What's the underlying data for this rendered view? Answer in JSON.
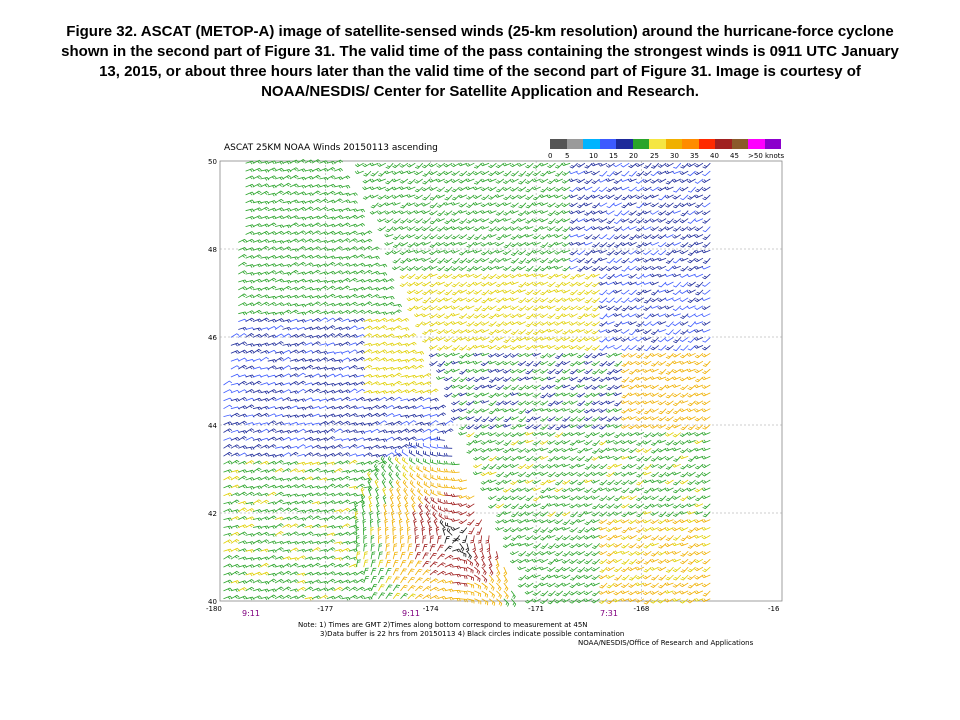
{
  "caption": "Figure 32.  ASCAT (METOP-A) image of satellite-sensed winds (25-km resolution) around the hurricane-force  cyclone shown in the second part of Figure 31.  The valid time of the pass containing  the strongest winds is 0911 UTC January 13, 2015, or about three hours later than the valid time of the second part of Figure 31.  Image is courtesy of NOAA/NESDIS/ Center for Satellite Application  and Research.",
  "figure": {
    "title": "ASCAT 25KM NOAA Winds 20150113 ascending",
    "legend": {
      "colors": [
        "#555555",
        "#9a9a9a",
        "#00b4ff",
        "#3c5aff",
        "#1d2a9a",
        "#2aa42a",
        "#f5e642",
        "#f0b000",
        "#ff8c00",
        "#ff2a00",
        "#a02020",
        "#8b5a2b",
        "#ff00ff",
        "#8b00cc"
      ],
      "labels": [
        "0",
        "5",
        "10",
        "15",
        "20",
        "25",
        "30",
        "35",
        "40",
        "45",
        ">50 knots"
      ]
    },
    "lat_labels": [
      "50",
      "48",
      "46",
      "44",
      "42",
      "40"
    ],
    "lon_labels": [
      "-180",
      "-177",
      "-174",
      "-171",
      "-168",
      "-16"
    ],
    "time_labels": [
      "9:11",
      "9:11",
      "7:31"
    ],
    "note_lines": [
      "Note: 1) Times are GMT 2)Times along bottom correspond to measurement at 45N",
      "3)Data buffer is 22 hrs from 20150113 4) Black circles indicate possible contamination",
      "NOAA/NESDIS/Office of Research and Applications"
    ]
  }
}
